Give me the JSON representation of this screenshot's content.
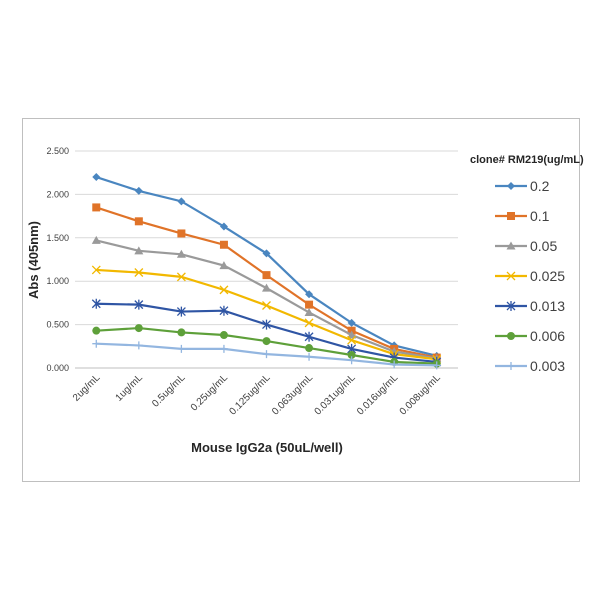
{
  "chart_data": {
    "type": "line",
    "title": "",
    "xlabel": "Mouse IgG2a (50uL/well)",
    "ylabel": "Abs (405nm)",
    "ylim": [
      0,
      2.5
    ],
    "yticks": [
      "0.000",
      "0.500",
      "1.000",
      "1.500",
      "2.000",
      "2.500"
    ],
    "categories": [
      "2ug/mL",
      "1ug/mL",
      "0.5ug/mL",
      "0.25ug/mL",
      "0.125ug/mL",
      "0.063ug/mL",
      "0.031ug/mL",
      "0.016ug/mL",
      "0.008ug/mL"
    ],
    "legend_title": "clone# RM219(ug/mL)",
    "legend_position": "right",
    "grid": true,
    "series": [
      {
        "name": "0.2",
        "color": "#4a86c0",
        "marker": "diamond",
        "values": [
          2.2,
          2.04,
          1.92,
          1.63,
          1.32,
          0.85,
          0.52,
          0.26,
          0.14
        ]
      },
      {
        "name": "0.1",
        "color": "#e07328",
        "marker": "square",
        "values": [
          1.85,
          1.69,
          1.55,
          1.42,
          1.07,
          0.73,
          0.43,
          0.22,
          0.12
        ]
      },
      {
        "name": "0.05",
        "color": "#9a9a9a",
        "marker": "triangle",
        "values": [
          1.47,
          1.35,
          1.31,
          1.18,
          0.92,
          0.64,
          0.38,
          0.19,
          0.11
        ]
      },
      {
        "name": "0.025",
        "color": "#f2b800",
        "marker": "x",
        "values": [
          1.13,
          1.1,
          1.05,
          0.9,
          0.72,
          0.52,
          0.32,
          0.16,
          0.1
        ]
      },
      {
        "name": "0.013",
        "color": "#2f55a4",
        "marker": "star",
        "values": [
          0.74,
          0.73,
          0.65,
          0.66,
          0.5,
          0.36,
          0.22,
          0.12,
          0.07
        ]
      },
      {
        "name": "0.006",
        "color": "#5ea03a",
        "marker": "circle",
        "values": [
          0.43,
          0.46,
          0.41,
          0.38,
          0.31,
          0.23,
          0.15,
          0.07,
          0.05
        ]
      },
      {
        "name": "0.003",
        "color": "#93b6e0",
        "marker": "plus",
        "values": [
          0.28,
          0.26,
          0.22,
          0.22,
          0.16,
          0.13,
          0.09,
          0.04,
          0.03
        ]
      }
    ]
  }
}
